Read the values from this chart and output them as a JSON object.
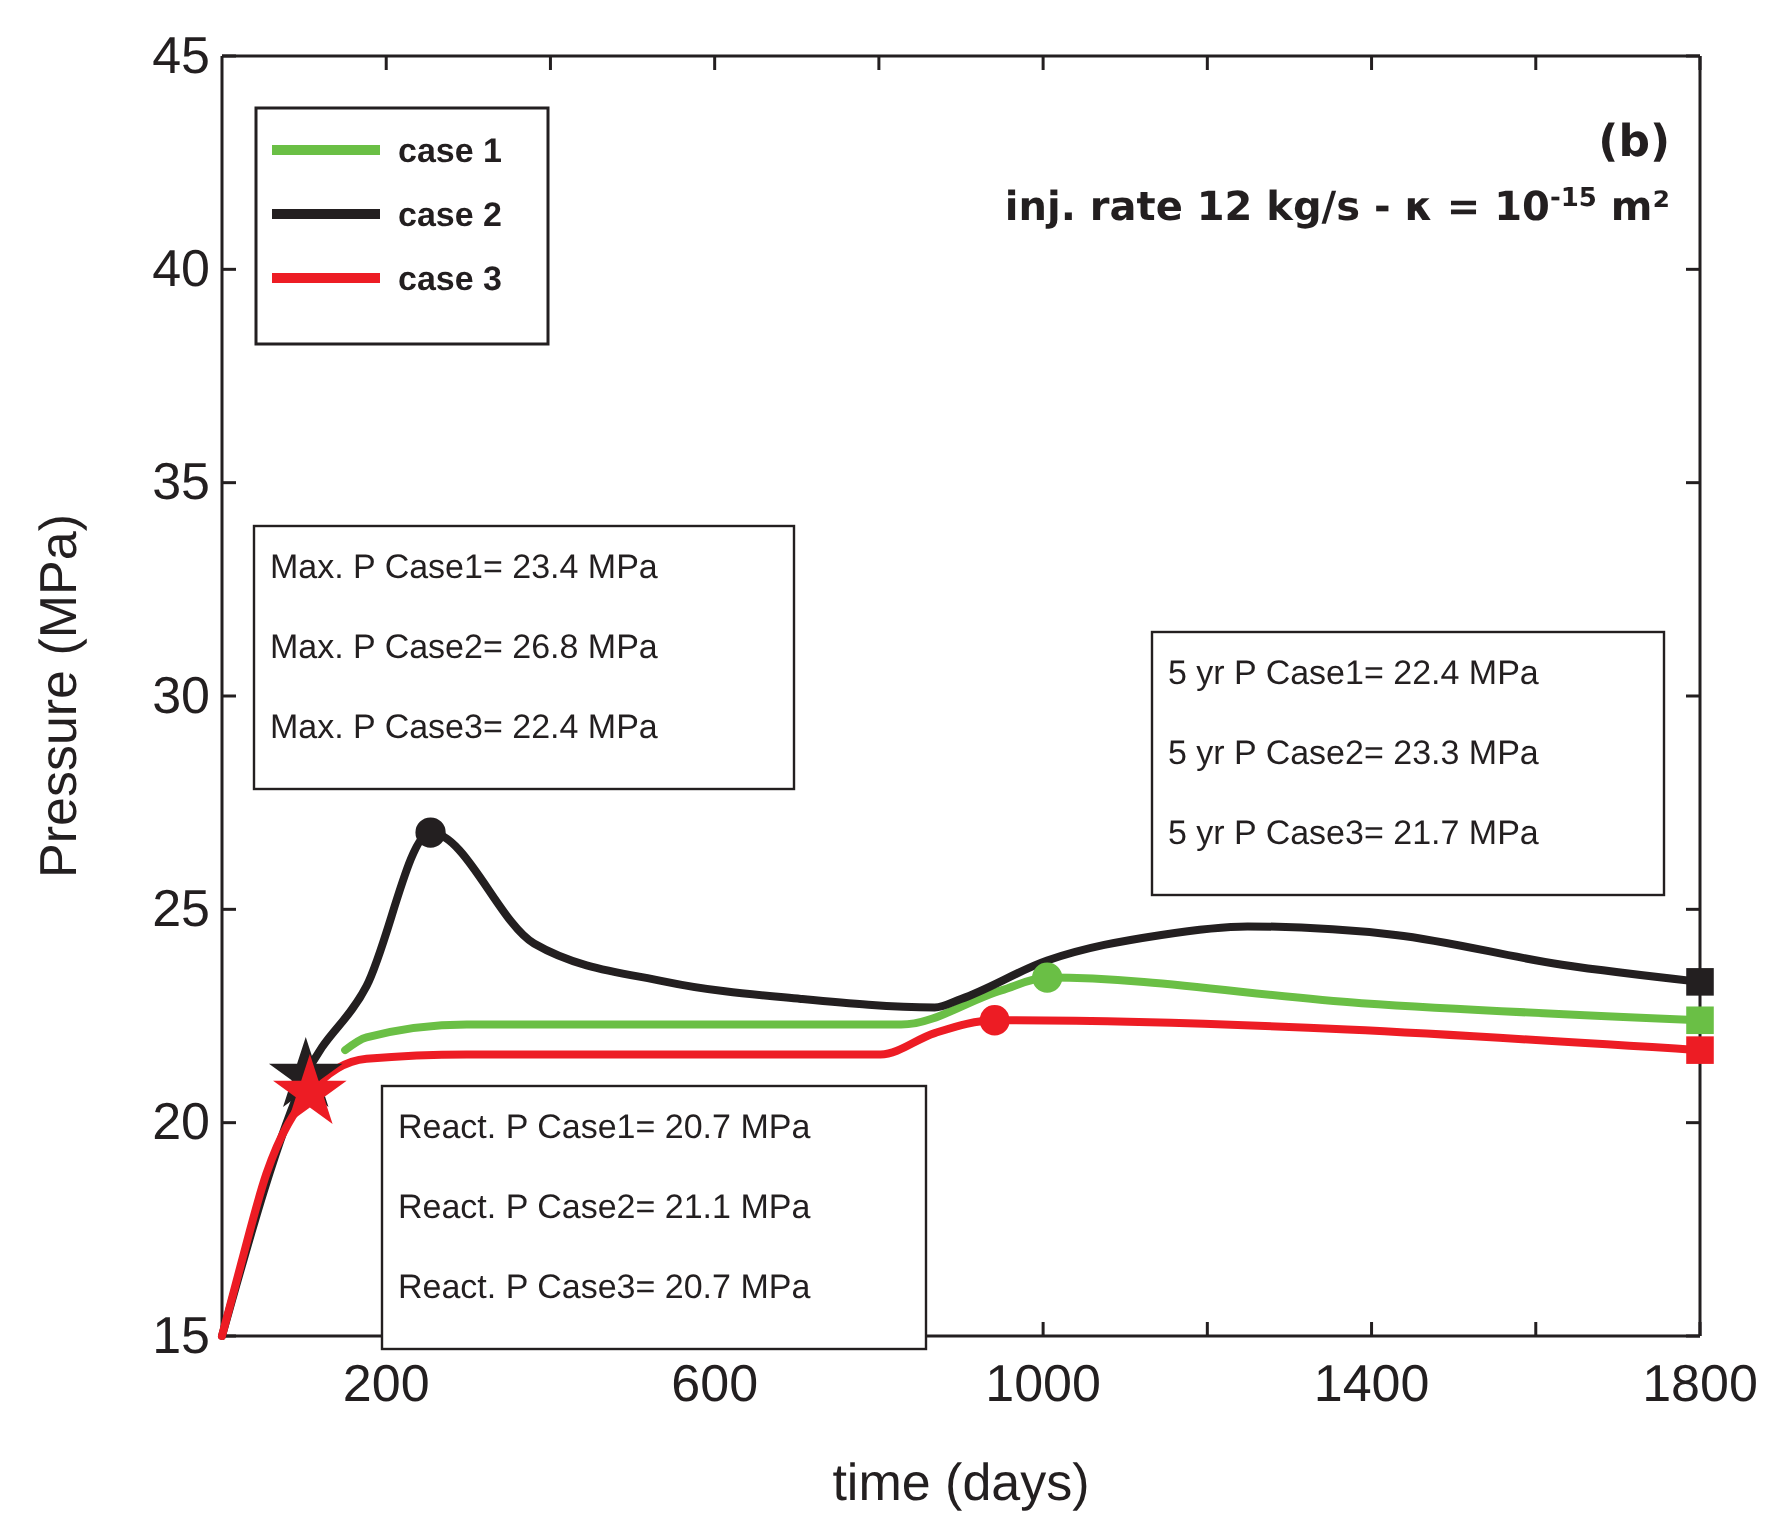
{
  "chart_data": {
    "type": "line",
    "title": "(b)",
    "subtitle": "inj. rate 12 kg/s - κ = 10$^{-15}$ m²",
    "xlabel": "time (days)",
    "ylabel": "Pressure (MPa)",
    "xlim": [
      0,
      1800
    ],
    "xticks": [
      {
        "value": 200,
        "label": "200"
      },
      {
        "value": 400,
        "label": null
      },
      {
        "value": 600,
        "label": "600"
      },
      {
        "value": 800,
        "label": null
      },
      {
        "value": 1000,
        "label": "1000"
      },
      {
        "value": 1200,
        "label": null
      },
      {
        "value": 1400,
        "label": "1400"
      },
      {
        "value": 1600,
        "label": null
      },
      {
        "value": 1800,
        "label": "1800"
      }
    ],
    "ylim": [
      15,
      45
    ],
    "yticks": [
      15,
      20,
      25,
      30,
      35,
      40,
      45
    ],
    "grid": false,
    "legend": "top left",
    "line_style": "solid",
    "series": [
      {
        "name": "case 1",
        "color": "#6abf45",
        "x": [
          150,
          176,
          298,
          541,
          827,
          949,
          1005,
          1388,
          1800
        ],
        "values": [
          21.7,
          22.0,
          22.3,
          22.3,
          22.3,
          23.1,
          23.4,
          22.8,
          22.4
        ]
      },
      {
        "name": "case 2",
        "color": "#231f20",
        "x": [
          0,
          102,
          176,
          254,
          380,
          541,
          705,
          868,
          900,
          1005,
          1144,
          1249,
          1429,
          1632,
          1800
        ],
        "values": [
          15,
          21.1,
          23.2,
          26.8,
          24.2,
          23.3,
          22.9,
          22.7,
          22.9,
          23.8,
          24.4,
          24.6,
          24.4,
          23.7,
          23.3
        ]
      },
      {
        "name": "case 3",
        "color": "#ed1c24",
        "x": [
          0,
          22,
          54,
          107,
          176,
          298,
          802,
          868,
          941,
          1800
        ],
        "values": [
          15,
          16.6,
          18.8,
          20.7,
          21.5,
          21.6,
          21.6,
          22.1,
          22.4,
          21.7
        ]
      },
      {
        "type": "scatter",
        "marker": "star",
        "color": "#231f20",
        "x": [
          102
        ],
        "values": [
          21.1
        ]
      },
      {
        "type": "scatter",
        "marker": "star",
        "color": "#ed1c24",
        "x": [
          107
        ],
        "values": [
          20.7
        ]
      },
      {
        "type": "scatter",
        "marker": "circle",
        "color": "#231f20",
        "x": [
          254
        ],
        "values": [
          26.8
        ]
      },
      {
        "type": "scatter",
        "marker": "circle",
        "color": "#6abf45",
        "x": [
          1005
        ],
        "values": [
          23.4
        ]
      },
      {
        "type": "scatter",
        "marker": "circle",
        "color": "#ed1c24",
        "x": [
          941
        ],
        "values": [
          22.4
        ]
      },
      {
        "type": "scatter",
        "marker": "square",
        "color": "#231f20",
        "x": [
          1800
        ],
        "values": [
          23.3
        ]
      },
      {
        "type": "scatter",
        "marker": "square",
        "color": "#6abf45",
        "x": [
          1800
        ],
        "values": [
          22.4
        ]
      },
      {
        "type": "scatter",
        "marker": "square",
        "color": "#ed1c24",
        "x": [
          1800
        ],
        "values": [
          21.7
        ]
      }
    ],
    "annotations": [
      "Max. P Case1= 23.4 MPa",
      "Max. P Case2= 26.8 MPa",
      "Max. P Case3= 22.4 MPa",
      "5 yr P Case1= 22.4 MPa",
      "5 yr P Case2= 23.3 MPa",
      "5 yr P Case3= 21.7 MPa",
      "React. P Case1= 20.7 MPa",
      "React. P Case2= 21.1 MPa",
      "React. P Case3= 20.7 MPa"
    ]
  }
}
